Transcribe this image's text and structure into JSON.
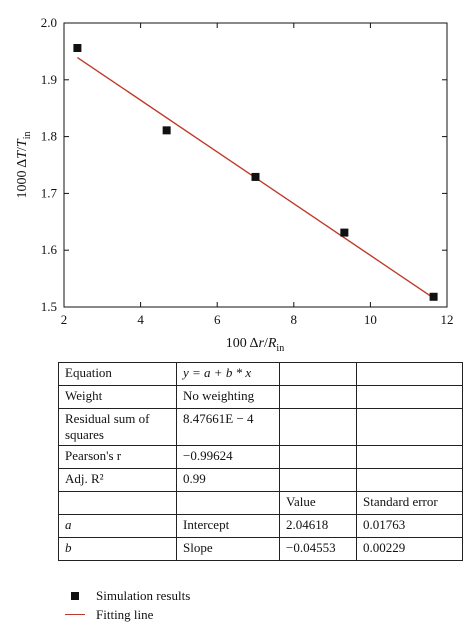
{
  "chart_data": {
    "type": "scatter",
    "xlabel": "100 Δr/R_in",
    "ylabel": "1000 ΔT/T_in",
    "xlim": [
      2,
      12
    ],
    "ylim": [
      1.5,
      2.0
    ],
    "xticks": [
      2,
      4,
      6,
      8,
      10,
      12
    ],
    "yticks": [
      1.5,
      1.6,
      1.7,
      1.8,
      1.9,
      2.0
    ],
    "series": [
      {
        "name": "Simulation results",
        "type": "scatter",
        "marker": "square",
        "color": "#111111",
        "points": [
          [
            2.35,
            1.956
          ],
          [
            4.68,
            1.811
          ],
          [
            7.0,
            1.729
          ],
          [
            9.32,
            1.631
          ],
          [
            11.65,
            1.518
          ]
        ]
      },
      {
        "name": "Fitting line",
        "type": "line",
        "color": "#c0392b",
        "intercept": 2.04618,
        "slope": -0.04553,
        "x_range": [
          2.35,
          11.65
        ]
      }
    ],
    "grid": false,
    "legend": "bottom-left"
  },
  "table": {
    "rows": [
      [
        "Equation",
        "y = a + b * x",
        "",
        ""
      ],
      [
        "Weight",
        "No weighting",
        "",
        ""
      ],
      [
        "Residual sum of squares",
        "8.47661E − 4",
        "",
        ""
      ],
      [
        "Pearson's r",
        "−0.99624",
        "",
        ""
      ],
      [
        "Adj. R²",
        "0.99",
        "",
        ""
      ],
      [
        "",
        "",
        "Value",
        "Standard error"
      ],
      [
        "a",
        "Intercept",
        "2.04618",
        "0.01763"
      ],
      [
        "b",
        "Slope",
        "−0.04553",
        "0.00229"
      ]
    ]
  },
  "legend": {
    "items": [
      {
        "label": "Simulation results",
        "icon": "black-square-marker"
      },
      {
        "label": "Fitting line",
        "icon": "red-line"
      }
    ]
  }
}
